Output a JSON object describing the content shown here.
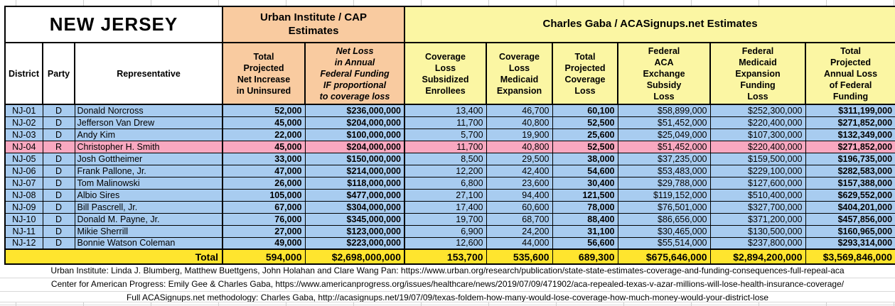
{
  "sheet_title": "NEW JERSEY",
  "source_groups": {
    "left": "Urban Institute / CAP\nEstimates",
    "right": "Charles Gaba / ACASignups.net Estimates"
  },
  "table": {
    "columns": [
      "District",
      "Party",
      "Representative",
      "Total\nProjected\nNet Increase\nin Uninsured",
      "Net Loss\nin Annual\nFederal Funding\nIF proportional\nto coverage loss",
      "Coverage\nLoss\nSubsidized\nEnrollees",
      "Coverage\nLoss\nMedicaid\nExpansion",
      "Total\nProjected\nCoverage\nLoss",
      "Federal\nACA\nExchange\nSubsidy\nLoss",
      "Federal\nMedicaid\nExpansion\nFunding\nLoss",
      "Total\nProjected\nAnnual Loss\nof Federal\nFunding"
    ],
    "rows": [
      {
        "district": "NJ-01",
        "party": "D",
        "representative": "Donald Norcross",
        "values": [
          "52,000",
          "$236,000,000",
          "13,400",
          "46,700",
          "60,100",
          "$58,899,000",
          "$252,300,000",
          "$311,199,000"
        ]
      },
      {
        "district": "NJ-02",
        "party": "D",
        "representative": "Jefferson Van Drew",
        "values": [
          "45,000",
          "$204,000,000",
          "11,700",
          "40,800",
          "52,500",
          "$51,452,000",
          "$220,400,000",
          "$271,852,000"
        ]
      },
      {
        "district": "NJ-03",
        "party": "D",
        "representative": "Andy Kim",
        "values": [
          "22,000",
          "$100,000,000",
          "5,700",
          "19,900",
          "25,600",
          "$25,049,000",
          "$107,300,000",
          "$132,349,000"
        ]
      },
      {
        "district": "NJ-04",
        "party": "R",
        "representative": "Christopher H. Smith",
        "values": [
          "45,000",
          "$204,000,000",
          "11,700",
          "40,800",
          "52,500",
          "$51,452,000",
          "$220,400,000",
          "$271,852,000"
        ]
      },
      {
        "district": "NJ-05",
        "party": "D",
        "representative": "Josh Gottheimer",
        "values": [
          "33,000",
          "$150,000,000",
          "8,500",
          "29,500",
          "38,000",
          "$37,235,000",
          "$159,500,000",
          "$196,735,000"
        ]
      },
      {
        "district": "NJ-06",
        "party": "D",
        "representative": "Frank Pallone, Jr.",
        "values": [
          "47,000",
          "$214,000,000",
          "12,200",
          "42,400",
          "54,600",
          "$53,483,000",
          "$229,100,000",
          "$282,583,000"
        ]
      },
      {
        "district": "NJ-07",
        "party": "D",
        "representative": "Tom Malinowski",
        "values": [
          "26,000",
          "$118,000,000",
          "6,800",
          "23,600",
          "30,400",
          "$29,788,000",
          "$127,600,000",
          "$157,388,000"
        ]
      },
      {
        "district": "NJ-08",
        "party": "D",
        "representative": "Albio Sires",
        "values": [
          "105,000",
          "$477,000,000",
          "27,100",
          "94,400",
          "121,500",
          "$119,152,000",
          "$510,400,000",
          "$629,552,000"
        ]
      },
      {
        "district": "NJ-09",
        "party": "D",
        "representative": "Bill Pascrell, Jr.",
        "values": [
          "67,000",
          "$304,000,000",
          "17,400",
          "60,600",
          "78,000",
          "$76,501,000",
          "$327,700,000",
          "$404,201,000"
        ]
      },
      {
        "district": "NJ-10",
        "party": "D",
        "representative": "Donald M. Payne, Jr.",
        "values": [
          "76,000",
          "$345,000,000",
          "19,700",
          "68,700",
          "88,400",
          "$86,656,000",
          "$371,200,000",
          "$457,856,000"
        ]
      },
      {
        "district": "NJ-11",
        "party": "D",
        "representative": "Mikie Sherrill",
        "values": [
          "27,000",
          "$123,000,000",
          "6,900",
          "24,200",
          "31,100",
          "$30,465,000",
          "$130,500,000",
          "$160,965,000"
        ]
      },
      {
        "district": "NJ-12",
        "party": "D",
        "representative": "Bonnie Watson Coleman",
        "values": [
          "49,000",
          "$223,000,000",
          "12,600",
          "44,000",
          "56,600",
          "$55,514,000",
          "$237,800,000",
          "$293,314,000"
        ]
      }
    ],
    "total": {
      "label": "Total",
      "values": [
        "594,000",
        "$2,698,000,000",
        "153,700",
        "535,600",
        "689,300",
        "$675,646,000",
        "$2,894,200,000",
        "$3,569,846,000"
      ]
    }
  },
  "footnotes": [
    "Urban Institute: Linda J. Blumberg, Matthew Buettgens, John Holahan and Clare Wang Pan: https://www.urban.org/research/publication/state-state-estimates-coverage-and-funding-consequences-full-repeal-aca",
    "Center for American Progress: Emily Gee & Charles Gaba, https://www.americanprogress.org/issues/healthcare/news/2019/07/09/471902/aca-repealed-texas-v-azar-millions-will-lose-health-insurance-coverage/",
    "Full ACASignups.net methodology: Charles Gaba, http://acasignups.net/19/07/09/texas-foldem-how-many-would-lose-coverage-how-much-money-would-your-district-lose"
  ],
  "colors": {
    "urban_header": "#F9CBA0",
    "gaba_header": "#FBF6A3",
    "democrat_row": "#A8CCF0",
    "republican_row": "#F9A8C0",
    "total_row": "#FFE52E"
  }
}
